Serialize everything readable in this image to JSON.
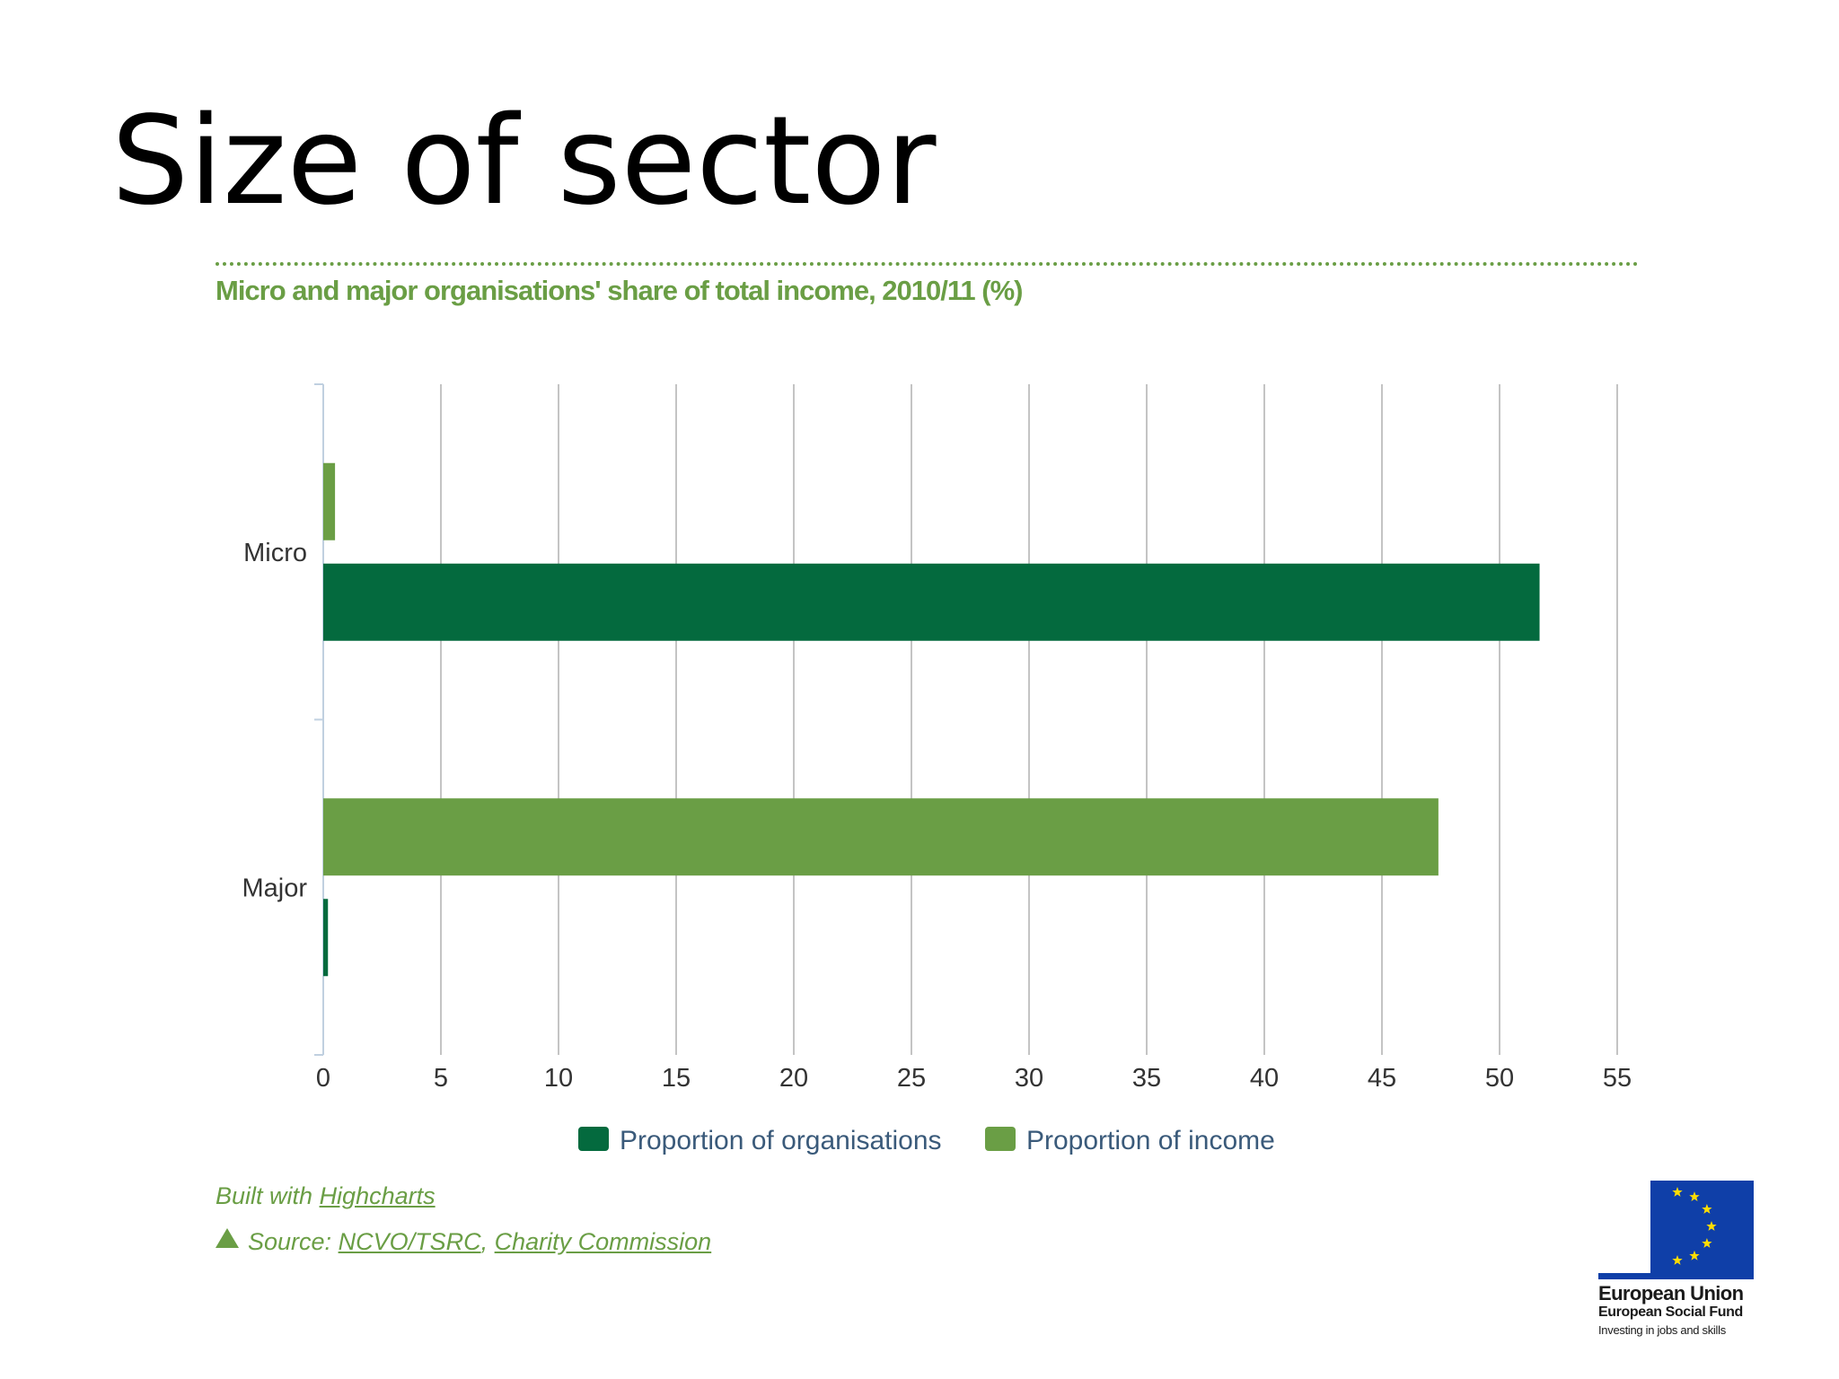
{
  "slide": {
    "title": "Size of sector"
  },
  "chart_data": {
    "type": "bar",
    "orientation": "horizontal",
    "title": "Micro and major organisations' share of total income, 2010/11 (%)",
    "categories": [
      "Micro",
      "Major"
    ],
    "series": [
      {
        "name": "Proportion of income",
        "color": "#6a9e45",
        "values": [
          0.5,
          47.4
        ]
      },
      {
        "name": "Proportion of organisations",
        "color": "#046a3e",
        "values": [
          51.7,
          0.2
        ]
      }
    ],
    "legend_order": [
      "Proportion of organisations",
      "Proportion of income"
    ],
    "xlim": [
      0,
      55
    ],
    "xticks": [
      0,
      5,
      10,
      15,
      20,
      25,
      30,
      35,
      40,
      45,
      50,
      55
    ],
    "grid": true,
    "legend_position": "bottom-center"
  },
  "credits": {
    "prefix": "Built with",
    "link": "Highcharts"
  },
  "source": {
    "label": "Source:",
    "links": [
      "NCVO/TSRC",
      "Charity Commission"
    ],
    "separator": ","
  },
  "logo": {
    "name": "European Union",
    "fund": "European Social Fund",
    "tagline": "Investing in jobs and skills",
    "flag_color": "#0f3fa8",
    "star_color": "#ffdd00",
    "icon": "eu-flag-icon"
  }
}
